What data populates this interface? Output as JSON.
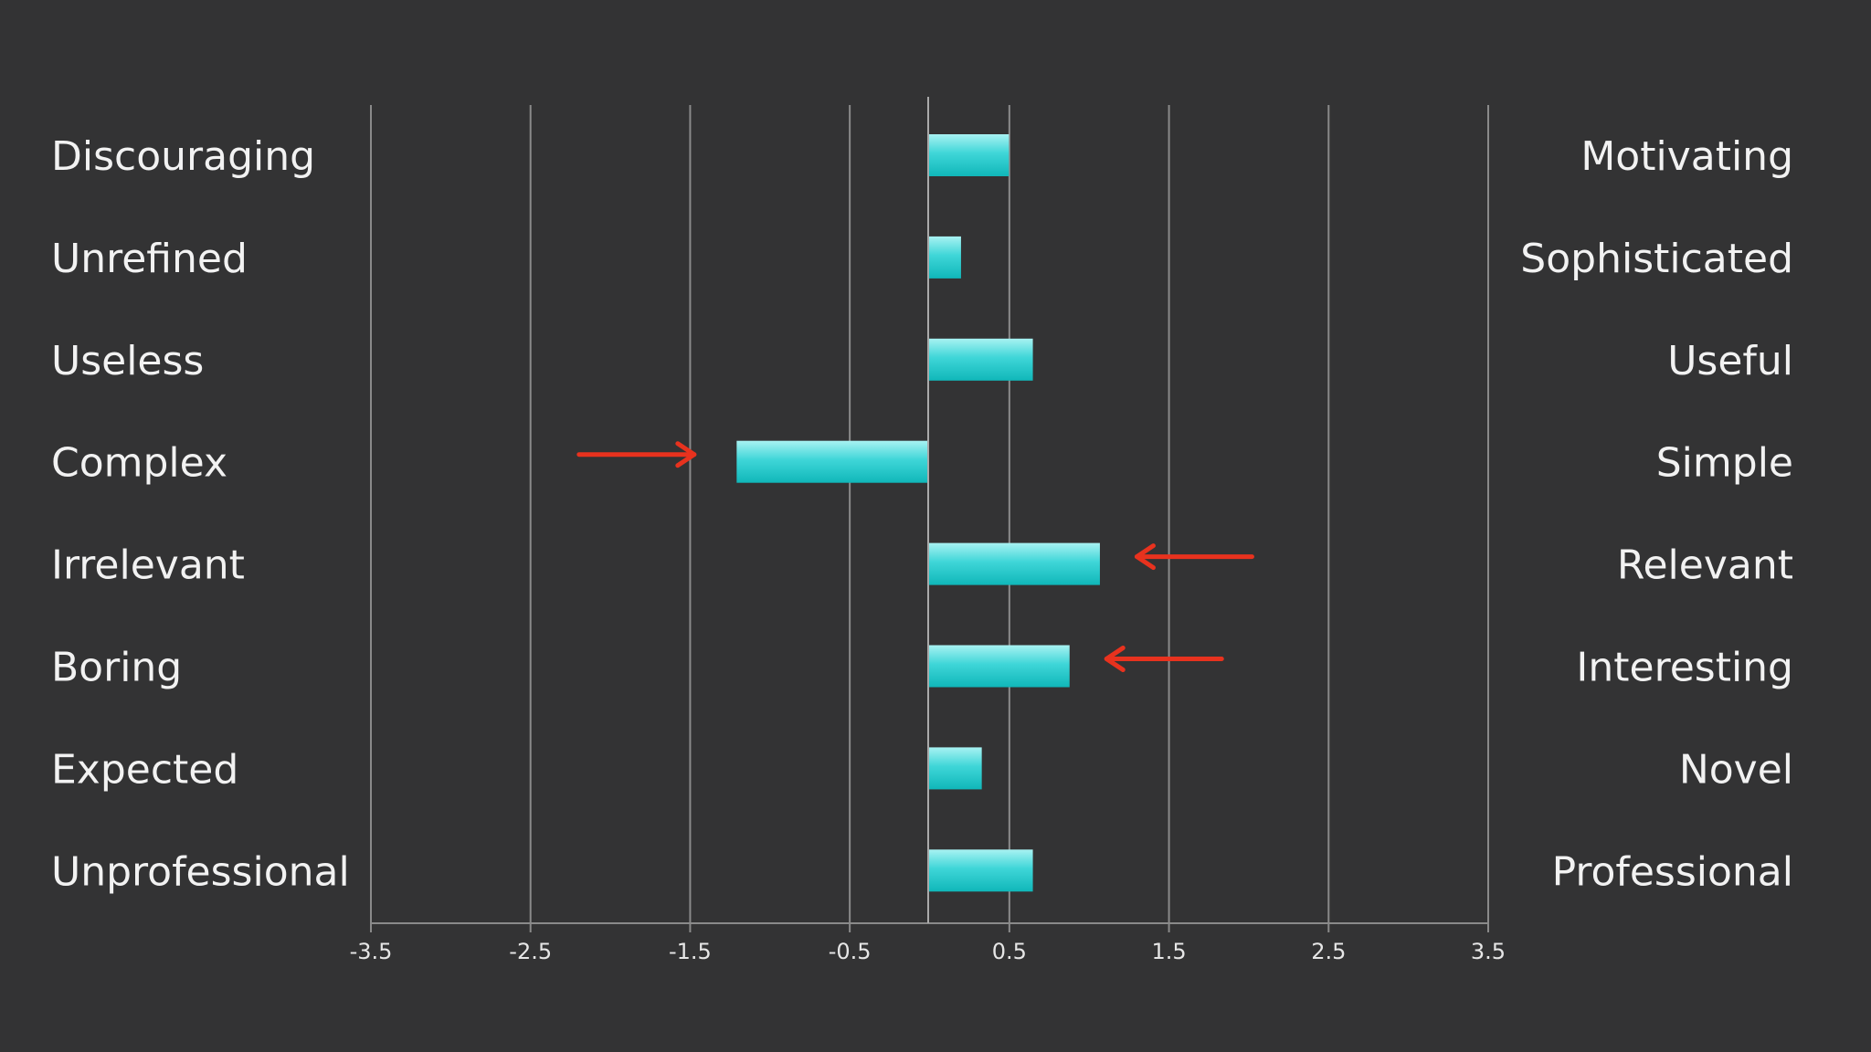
{
  "chart_data": {
    "type": "bar",
    "orientation": "horizontal",
    "categories": [
      "Discouraging",
      "Unrefined",
      "Useless",
      "Complex",
      "Irrelevant",
      "Boring",
      "Expected",
      "Unprofessional"
    ],
    "right_labels": [
      "Motivating",
      "Sophisticated",
      "Useful",
      "Simple",
      "Relevant",
      "Interesting",
      "Novel",
      "Professional"
    ],
    "values": [
      0.5,
      0.2,
      0.65,
      -1.2,
      1.07,
      0.88,
      0.33,
      0.65
    ],
    "xlim": [
      -3.5,
      3.5
    ],
    "xticks": [
      -3.5,
      -2.5,
      -1.5,
      -0.5,
      0.5,
      1.5,
      2.5,
      3.5
    ],
    "tick_labels": [
      "-3.5",
      "-2.5",
      "-1.5",
      "-0.5",
      "0.5",
      "1.5",
      "2.5",
      "3.5"
    ],
    "grid": true,
    "bar_color": "#1bc4c6",
    "arrow_color": "#e8321e",
    "annotations": [
      {
        "category": "Complex",
        "type": "arrow",
        "direction": "right"
      },
      {
        "category": "Irrelevant",
        "type": "arrow",
        "direction": "left"
      },
      {
        "category": "Boring",
        "type": "arrow",
        "direction": "left"
      }
    ],
    "title": "",
    "xlabel": "",
    "ylabel": ""
  },
  "colors": {
    "background": "#333334",
    "text": "#f2f2f2",
    "grid": "#8a8a8a"
  }
}
